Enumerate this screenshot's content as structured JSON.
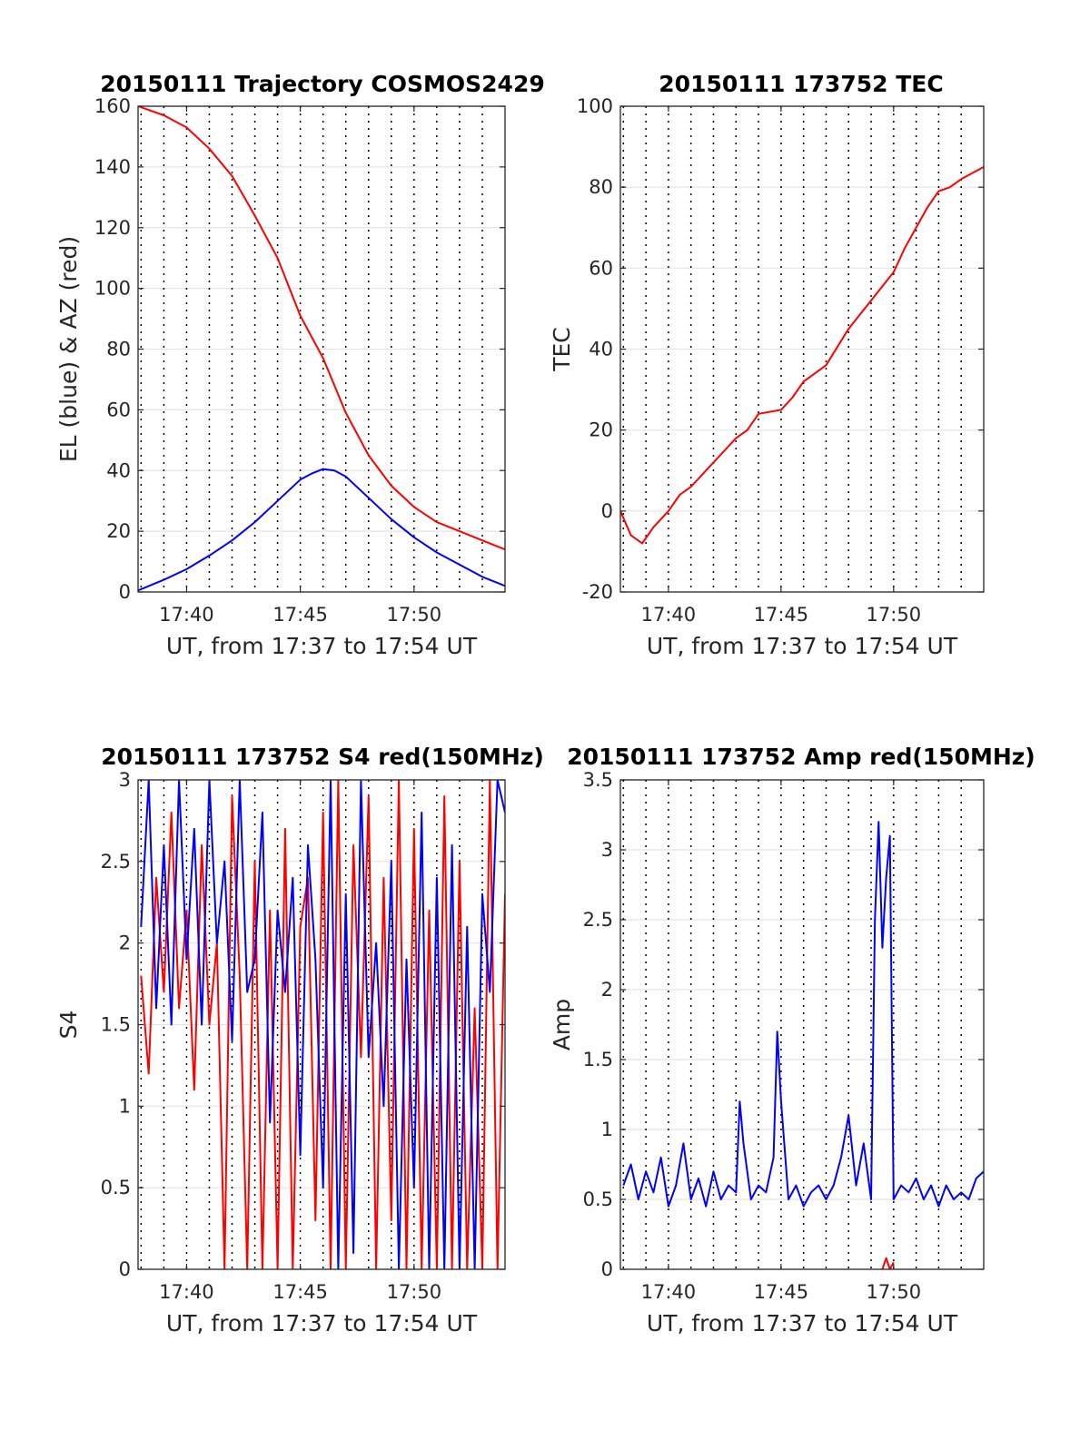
{
  "chart_data": [
    {
      "type": "line",
      "title": "20150111 Trajectory COSMOS2429",
      "xlabel": "UT, from 17:37 to 17:54 UT",
      "ylabel": "EL (blue) & AZ (red)",
      "x_unit": "UT",
      "xlim": [
        "17:37:52",
        "17:54"
      ],
      "ylim": [
        0,
        160
      ],
      "x_ticks": [
        "17:40",
        "17:45",
        "17:50"
      ],
      "y_ticks": [
        "0",
        "20",
        "40",
        "60",
        "80",
        "100",
        "120",
        "140",
        "160"
      ],
      "grid": "dotted vertical every minute, light horizontal",
      "series": [
        {
          "color": "#ff0000",
          "x": [
            "17:37:52",
            "17:39",
            "17:40",
            "17:41",
            "17:42",
            "17:43",
            "17:44",
            "17:45",
            "17:45:30",
            "17:46",
            "17:46:30",
            "17:47",
            "17:48",
            "17:49",
            "17:50",
            "17:51",
            "17:52",
            "17:53",
            "17:54"
          ],
          "values": [
            160,
            157,
            153,
            146,
            137,
            124,
            110,
            91,
            84,
            77,
            68,
            59,
            45,
            35,
            28,
            23,
            20,
            17,
            14
          ]
        },
        {
          "color": "#0000ff",
          "x": [
            "17:37:52",
            "17:39",
            "17:40",
            "17:41",
            "17:42",
            "17:43",
            "17:44",
            "17:45",
            "17:45:30",
            "17:46",
            "17:46:30",
            "17:47",
            "17:48",
            "17:49",
            "17:50",
            "17:51",
            "17:52",
            "17:53",
            "17:54"
          ],
          "values": [
            0.5,
            4,
            7.5,
            12,
            17,
            23,
            30,
            37,
            39,
            40.5,
            40,
            38,
            31,
            24,
            18,
            13,
            9,
            5,
            2
          ]
        }
      ]
    },
    {
      "type": "line",
      "title": "20150111 173752 TEC",
      "xlabel": "UT, from 17:37 to 17:54 UT",
      "ylabel": "TEC",
      "xlim": [
        "17:37:52",
        "17:54"
      ],
      "ylim": [
        -20,
        100
      ],
      "x_ticks": [
        "17:40",
        "17:45",
        "17:50"
      ],
      "y_ticks": [
        "-20",
        "0",
        "20",
        "40",
        "60",
        "80",
        "100"
      ],
      "grid": "dotted vertical every minute, light horizontal",
      "series": [
        {
          "color": "#ff0000",
          "x": [
            "17:37:52",
            "17:38:20",
            "17:38:50",
            "17:39:20",
            "17:40",
            "17:40:30",
            "17:41",
            "17:42",
            "17:42:30",
            "17:43",
            "17:43:30",
            "17:44",
            "17:45",
            "17:45:30",
            "17:46",
            "17:47",
            "17:48",
            "17:49",
            "17:50",
            "17:50:30",
            "17:51",
            "17:51:30",
            "17:52",
            "17:52:30",
            "17:53",
            "17:54"
          ],
          "values": [
            0,
            -6,
            -8,
            -4,
            0,
            4,
            6,
            12,
            15,
            18,
            20,
            24,
            25,
            28,
            32,
            36,
            45,
            52,
            59,
            65,
            70,
            75,
            79,
            80,
            82,
            85
          ]
        }
      ]
    },
    {
      "type": "line",
      "title": "20150111 173752 S4 red(150MHz)",
      "xlabel": "UT, from 17:37 to 17:54 UT",
      "ylabel": "S4",
      "xlim": [
        "17:37:52",
        "17:54"
      ],
      "ylim": [
        0,
        3
      ],
      "x_ticks": [
        "17:40",
        "17:45",
        "17:50"
      ],
      "y_ticks": [
        "0",
        "0.5",
        "1",
        "1.5",
        "2",
        "2.5",
        "3"
      ],
      "grid": "dotted vertical every minute, light horizontal",
      "note_text": "",
      "series": [
        {
          "color": "#ff0000",
          "x": [
            "17:38",
            "17:38:20",
            "17:38:40",
            "17:39",
            "17:39:20",
            "17:39:40",
            "17:40",
            "17:40:20",
            "17:40:40",
            "17:41",
            "17:41:20",
            "17:41:40",
            "17:42",
            "17:42:20",
            "17:42:40",
            "17:43",
            "17:43:20",
            "17:43:40",
            "17:44",
            "17:44:20",
            "17:44:40",
            "17:45",
            "17:45:20",
            "17:45:40",
            "17:46",
            "17:46:20",
            "17:46:40",
            "17:47",
            "17:47:20",
            "17:47:40",
            "17:48",
            "17:48:20",
            "17:48:40",
            "17:49",
            "17:49:20",
            "17:49:40",
            "17:50",
            "17:50:20",
            "17:50:40",
            "17:51",
            "17:51:20",
            "17:51:40",
            "17:52",
            "17:52:20",
            "17:52:40",
            "17:53",
            "17:53:20",
            "17:53:40",
            "17:54"
          ],
          "values": [
            1.8,
            1.2,
            2.4,
            1.7,
            2.8,
            1.6,
            2.2,
            1.1,
            2.6,
            1.5,
            2.0,
            0.0,
            2.9,
            1.8,
            0.0,
            2.5,
            0.0,
            2.2,
            0.0,
            2.7,
            0.0,
            2.1,
            2.4,
            0.3,
            2.8,
            0.0,
            3.0,
            0.0,
            2.6,
            1.3,
            2.9,
            0.0,
            2.4,
            0.3,
            3.0,
            0.0,
            2.7,
            0.0,
            2.2,
            0.0,
            2.9,
            0.0,
            2.5,
            0.0,
            1.6,
            0.0,
            3.0,
            0.0,
            2.3
          ]
        },
        {
          "color": "#0000ff",
          "x": [
            "17:38",
            "17:38:20",
            "17:38:40",
            "17:39",
            "17:39:20",
            "17:39:40",
            "17:40",
            "17:40:20",
            "17:40:40",
            "17:41",
            "17:41:20",
            "17:41:40",
            "17:42",
            "17:42:20",
            "17:42:40",
            "17:43",
            "17:43:20",
            "17:43:40",
            "17:44",
            "17:44:20",
            "17:44:40",
            "17:45",
            "17:45:20",
            "17:45:40",
            "17:46",
            "17:46:20",
            "17:46:40",
            "17:47",
            "17:47:20",
            "17:47:40",
            "17:48",
            "17:48:20",
            "17:48:40",
            "17:49",
            "17:49:20",
            "17:49:40",
            "17:50",
            "17:50:20",
            "17:50:40",
            "17:51",
            "17:51:20",
            "17:51:40",
            "17:52",
            "17:52:20",
            "17:52:40",
            "17:53",
            "17:53:20",
            "17:53:40",
            "17:54"
          ],
          "values": [
            2.1,
            3.0,
            1.6,
            2.6,
            1.5,
            3.0,
            1.9,
            2.7,
            1.5,
            3.0,
            2.0,
            2.5,
            1.4,
            3.0,
            1.7,
            1.9,
            2.8,
            0.9,
            2.2,
            1.7,
            2.4,
            0.7,
            2.6,
            1.9,
            0.5,
            3.0,
            0.0,
            2.3,
            0.1,
            3.0,
            1.3,
            2.0,
            1.0,
            2.5,
            0.0,
            1.9,
            0.5,
            2.8,
            0.0,
            2.4,
            0.0,
            2.6,
            0.0,
            2.1,
            0.0,
            2.3,
            1.7,
            3.0,
            2.8
          ]
        }
      ]
    },
    {
      "type": "line",
      "title": "20150111 173752 Amp red(150MHz)",
      "xlabel": "UT, from 17:37 to 17:54 UT",
      "ylabel": "Amp",
      "xlim": [
        "17:37:52",
        "17:54"
      ],
      "ylim": [
        0,
        3.5
      ],
      "x_ticks": [
        "17:40",
        "17:45",
        "17:50"
      ],
      "y_ticks": [
        "0",
        "0.5",
        "1",
        "1.5",
        "2",
        "2.5",
        "3",
        "3.5"
      ],
      "grid": "dotted vertical every minute, light horizontal",
      "series": [
        {
          "color": "#ff0000",
          "x": [
            "17:49:30",
            "17:49:40",
            "17:49:50",
            "17:50"
          ],
          "values": [
            0.0,
            0.08,
            0.0,
            0.05
          ]
        },
        {
          "color": "#0000ff",
          "x": [
            "17:38",
            "17:38:20",
            "17:38:40",
            "17:39",
            "17:39:20",
            "17:39:40",
            "17:40",
            "17:40:20",
            "17:40:40",
            "17:41",
            "17:41:20",
            "17:41:40",
            "17:42",
            "17:42:20",
            "17:42:40",
            "17:43",
            "17:43:10",
            "17:43:20",
            "17:43:40",
            "17:44",
            "17:44:20",
            "17:44:40",
            "17:44:50",
            "17:45",
            "17:45:20",
            "17:45:40",
            "17:46",
            "17:46:20",
            "17:46:40",
            "17:47",
            "17:47:20",
            "17:47:40",
            "17:48",
            "17:48:20",
            "17:48:40",
            "17:49",
            "17:49:10",
            "17:49:20",
            "17:49:30",
            "17:49:40",
            "17:49:50",
            "17:50",
            "17:50:20",
            "17:50:40",
            "17:51",
            "17:51:20",
            "17:51:40",
            "17:52",
            "17:52:20",
            "17:52:40",
            "17:53",
            "17:53:20",
            "17:53:40",
            "17:54"
          ],
          "values": [
            0.6,
            0.75,
            0.5,
            0.7,
            0.55,
            0.8,
            0.45,
            0.6,
            0.9,
            0.5,
            0.65,
            0.45,
            0.7,
            0.5,
            0.6,
            0.55,
            1.2,
            0.9,
            0.5,
            0.6,
            0.55,
            0.8,
            1.7,
            1.2,
            0.5,
            0.6,
            0.45,
            0.55,
            0.6,
            0.5,
            0.6,
            0.8,
            1.1,
            0.6,
            0.9,
            0.5,
            2.5,
            3.2,
            2.3,
            2.8,
            3.1,
            0.5,
            0.6,
            0.55,
            0.65,
            0.5,
            0.6,
            0.45,
            0.6,
            0.5,
            0.55,
            0.5,
            0.65,
            0.7
          ]
        }
      ]
    }
  ]
}
